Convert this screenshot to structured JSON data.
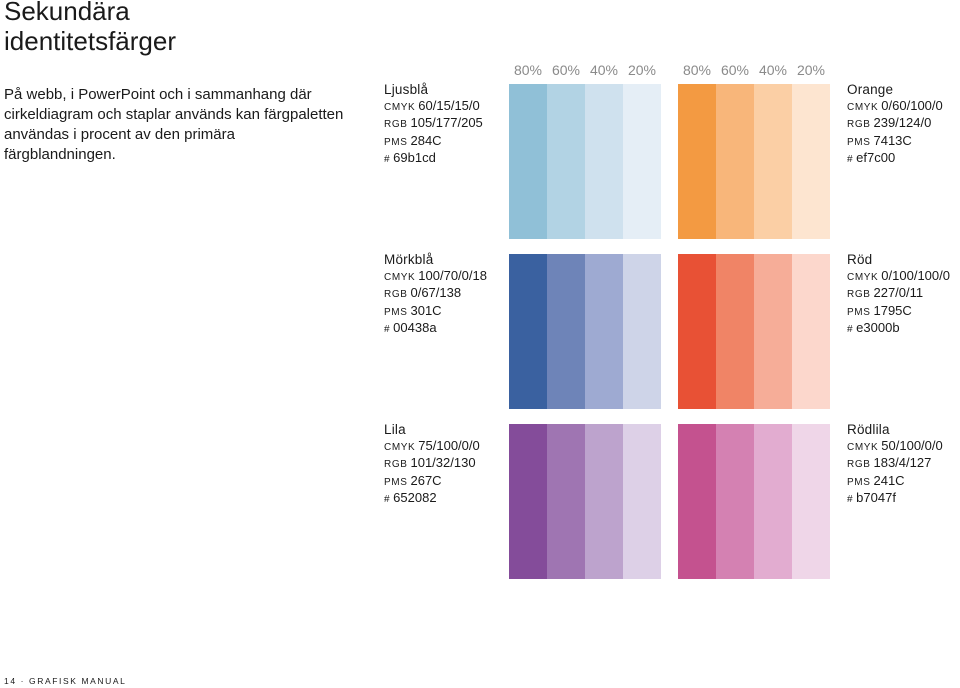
{
  "title": {
    "line1": "Sekundära",
    "line2": "identitetsfärger"
  },
  "intro": "På webb, i PowerPoint och i sammanhang där cirkeldiagram och staplar används kan färgpaletten användas i procent av den primära färgblandningen.",
  "percent_headers": [
    "80%",
    "60%",
    "40%",
    "20%"
  ],
  "spec_labels": {
    "cmyk": "CMYK",
    "rgb": "RGB",
    "pms": "PMS",
    "hex": "#"
  },
  "colors": {
    "ljusbla": {
      "name": "Ljusblå",
      "cmyk": "60/15/15/0",
      "rgb": "105/177/205",
      "pms": "284C",
      "hex": "69b1cd",
      "swatches": [
        "#90c0d7",
        "#b2d3e4",
        "#cfe1ee",
        "#e5eef6"
      ]
    },
    "orange": {
      "name": "Orange",
      "cmyk": "0/60/100/0",
      "rgb": "239/124/0",
      "pms": "7413C",
      "hex": "ef7c00",
      "swatches": [
        "#f39a42",
        "#f8b67a",
        "#fbcfa5",
        "#fde5d0"
      ]
    },
    "morkbla": {
      "name": "Mörkblå",
      "cmyk": "100/70/0/18",
      "rgb": "0/67/138",
      "pms": "301C",
      "hex": "00438a",
      "swatches": [
        "#3a61a0",
        "#6e84b8",
        "#9eaad2",
        "#ced4e8"
      ]
    },
    "rod": {
      "name": "Röd",
      "cmyk": "0/100/100/0",
      "rgb": "227/0/11",
      "pms": "1795C",
      "hex": "e3000b",
      "swatches": [
        "#e85135",
        "#f08466",
        "#f6ad98",
        "#fcd7cc"
      ]
    },
    "lila": {
      "name": "Lila",
      "cmyk": "75/100/0/0",
      "rgb": "101/32/130",
      "pms": "267C",
      "hex": "652082",
      "swatches": [
        "#844c9a",
        "#9f75b2",
        "#bda3cd",
        "#ddd0e7"
      ]
    },
    "rodlila": {
      "name": "Rödlila",
      "cmyk": "50/100/0/0",
      "rgb": "183/4/127",
      "pms": "241C",
      "hex": "b7047f",
      "swatches": [
        "#c4528f",
        "#d481b2",
        "#e2acd0",
        "#efd6e8"
      ]
    }
  },
  "footer": "14 · GRAFISK MANUAL"
}
